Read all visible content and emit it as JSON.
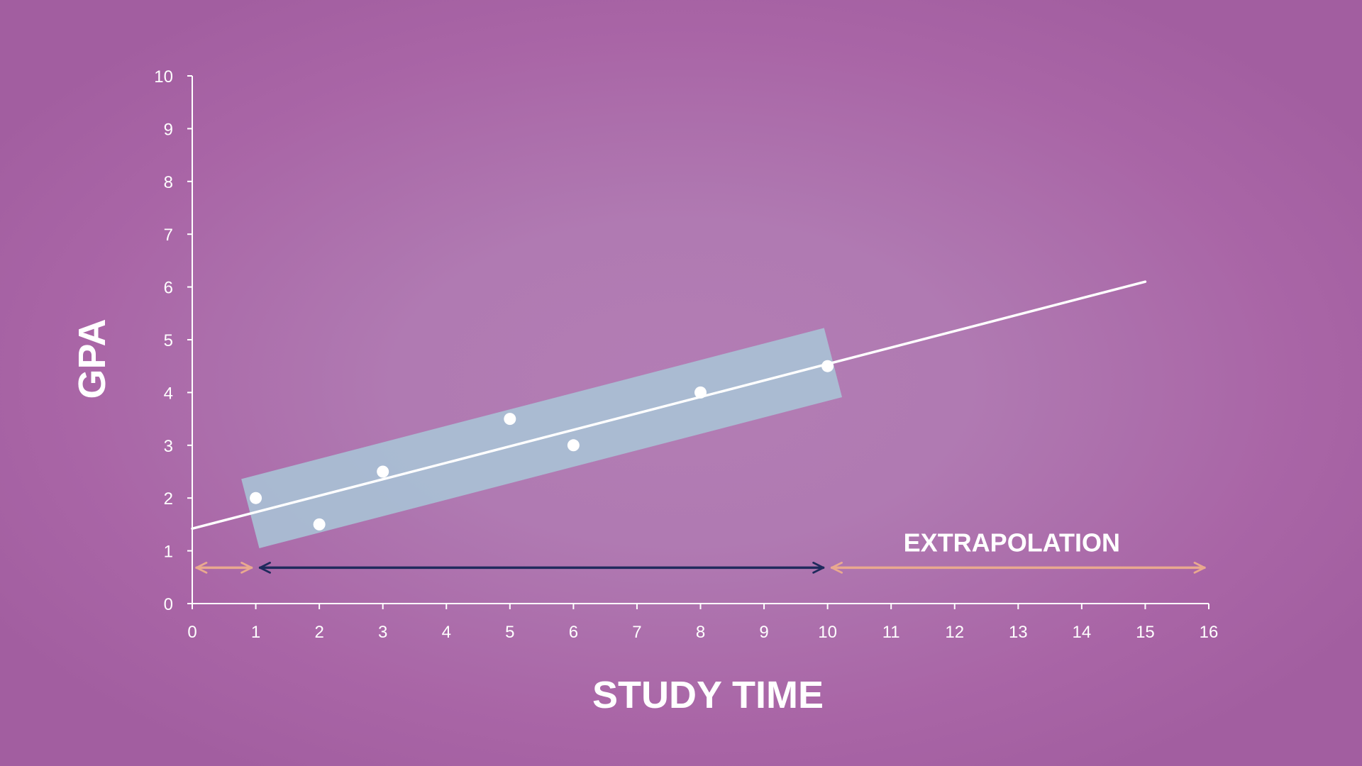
{
  "chart_data": {
    "type": "scatter",
    "xlabel": "STUDY TIME",
    "ylabel": "GPA",
    "xlim": [
      0,
      16
    ],
    "ylim": [
      0,
      10
    ],
    "x_ticks": [
      "0",
      "1",
      "2",
      "3",
      "4",
      "5",
      "6",
      "7",
      "8",
      "9",
      "10",
      "11",
      "12",
      "13",
      "14",
      "15",
      "16"
    ],
    "y_ticks": [
      "0",
      "1",
      "2",
      "3",
      "4",
      "5",
      "6",
      "7",
      "8",
      "9",
      "10"
    ],
    "grid": false,
    "legend": "none",
    "points": [
      {
        "x": 1,
        "y": 2
      },
      {
        "x": 2,
        "y": 1.5
      },
      {
        "x": 3,
        "y": 2.5
      },
      {
        "x": 5,
        "y": 3.5
      },
      {
        "x": 6,
        "y": 3
      },
      {
        "x": 8,
        "y": 4
      },
      {
        "x": 10,
        "y": 4.5
      }
    ],
    "regression_line": {
      "x": [
        0,
        15
      ],
      "y": [
        1.42,
        6.1
      ]
    },
    "data_range_band": {
      "x": [
        1,
        10
      ],
      "half_width": 0.7
    },
    "ranges": [
      {
        "x": [
          0,
          1
        ],
        "kind": "extrapolation"
      },
      {
        "x": [
          1,
          10
        ],
        "kind": "data-range"
      },
      {
        "x": [
          10,
          16
        ],
        "kind": "extrapolation"
      }
    ],
    "annotations": [
      {
        "text": "EXTRAPOLATION",
        "x": 12.9,
        "y": 1.15
      }
    ],
    "colors": {
      "axis": "#ffffff",
      "points": "#ffffff",
      "line": "#ffffff",
      "band": "#a9c4d6",
      "extrapolation_arrow": "#e9a98f",
      "data_range_arrow": "#1f2a5c"
    }
  }
}
